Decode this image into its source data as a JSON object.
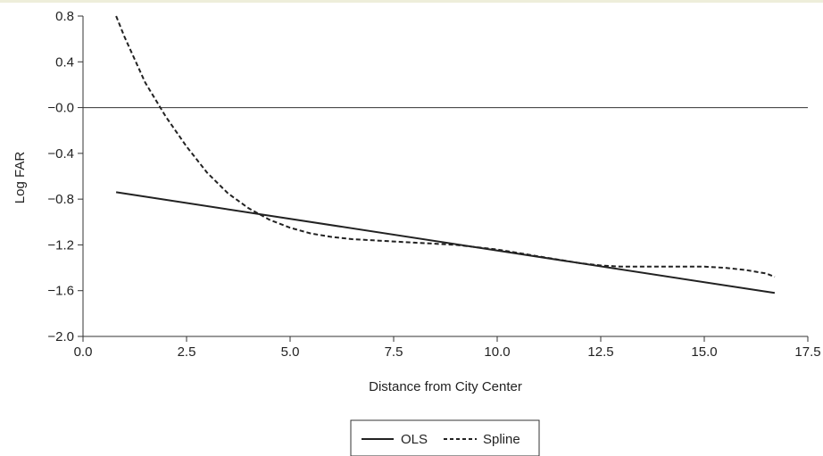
{
  "chart_data": {
    "type": "line",
    "title": "",
    "xlabel": "Distance from City Center",
    "ylabel": "Log FAR",
    "xlim": [
      0,
      17.5
    ],
    "ylim": [
      -2.0,
      0.8
    ],
    "x_ticks": [
      "0.0",
      "2.5",
      "5.0",
      "7.5",
      "10.0",
      "12.5",
      "15.0",
      "17.5"
    ],
    "y_ticks": [
      "0.8",
      "0.4",
      "-0.0",
      "-0.4",
      "-0.8",
      "-1.2",
      "-1.6",
      "-2.0"
    ],
    "reference_line_y": 0,
    "grid": false,
    "legend_position": "bottom-center",
    "series": [
      {
        "name": "OLS",
        "style": "solid",
        "color": "#222222",
        "x": [
          0.8,
          16.7
        ],
        "y": [
          -0.74,
          -1.62
        ]
      },
      {
        "name": "Spline",
        "style": "dashed",
        "color": "#222222",
        "x": [
          0.8,
          1.0,
          1.5,
          2.0,
          2.5,
          3.0,
          3.5,
          4.0,
          4.5,
          5.0,
          5.5,
          6.0,
          6.5,
          7.0,
          7.5,
          8.0,
          8.5,
          9.0,
          9.5,
          10.0,
          10.5,
          11.0,
          11.5,
          12.0,
          12.5,
          13.0,
          13.5,
          14.0,
          14.5,
          15.0,
          15.5,
          16.0,
          16.5,
          16.7
        ],
        "y": [
          0.8,
          0.62,
          0.22,
          -0.08,
          -0.34,
          -0.57,
          -0.75,
          -0.88,
          -0.98,
          -1.05,
          -1.1,
          -1.13,
          -1.15,
          -1.16,
          -1.17,
          -1.18,
          -1.19,
          -1.2,
          -1.22,
          -1.24,
          -1.27,
          -1.3,
          -1.33,
          -1.36,
          -1.38,
          -1.39,
          -1.39,
          -1.39,
          -1.39,
          -1.39,
          -1.4,
          -1.42,
          -1.45,
          -1.48
        ]
      }
    ]
  }
}
